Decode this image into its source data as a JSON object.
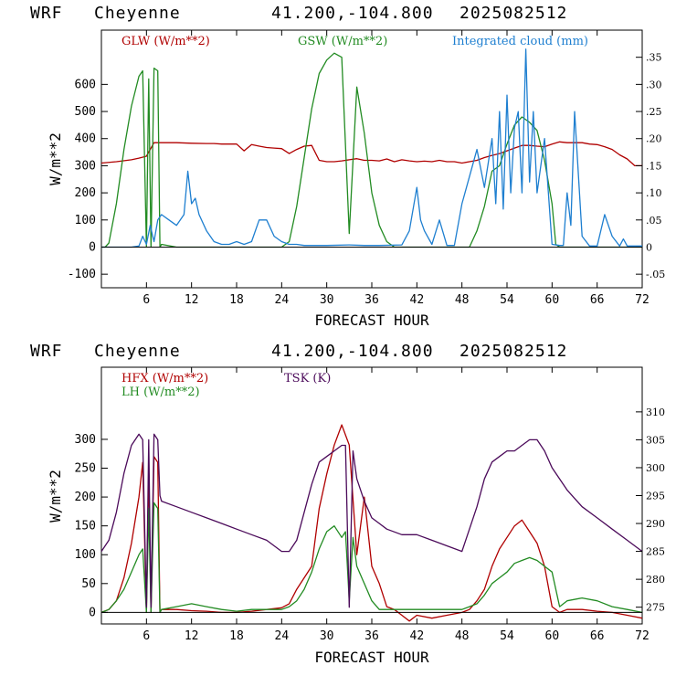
{
  "chart_data": [
    {
      "type": "line",
      "header": {
        "model": "WRF",
        "location": "Cheyenne",
        "coords": "41.200,-104.800",
        "run": "2025082512"
      },
      "xlabel": "FORECAST HOUR",
      "ylabel": "W/m**2",
      "xlim": [
        0,
        72
      ],
      "ylim": [
        -150,
        800
      ],
      "y2lim": [
        -0.075,
        0.4
      ],
      "x_ticks": [
        "6",
        "12",
        "18",
        "24",
        "30",
        "36",
        "42",
        "48",
        "54",
        "60",
        "66",
        "72"
      ],
      "y_ticks": [
        "-100",
        "0",
        "100",
        "200",
        "300",
        "400",
        "500",
        "600"
      ],
      "y2_ticks": [
        "-.05",
        "0",
        ".05",
        ".10",
        ".15",
        ".20",
        ".25",
        ".30",
        ".35"
      ],
      "series": [
        {
          "name": "GLW (W/m**2)",
          "color": "#b00000",
          "axis": "left",
          "x": [
            0,
            2,
            4,
            5,
            6,
            7,
            8,
            9,
            10,
            12,
            14,
            15,
            16,
            18,
            19,
            20,
            21,
            22,
            23,
            24,
            25,
            26,
            27,
            28,
            29,
            30,
            31,
            32,
            33,
            34,
            35,
            36,
            37,
            38,
            39,
            40,
            41,
            42,
            43,
            44,
            45,
            46,
            47,
            48,
            49,
            50,
            51,
            52,
            53,
            54,
            55,
            56,
            57,
            58,
            59,
            60,
            61,
            62,
            63,
            64,
            65,
            66,
            67,
            68,
            69,
            70,
            71,
            72
          ],
          "y": [
            310,
            315,
            322,
            328,
            335,
            385,
            385,
            385,
            385,
            383,
            382,
            382,
            380,
            380,
            355,
            378,
            372,
            367,
            365,
            363,
            345,
            360,
            372,
            375,
            320,
            315,
            315,
            318,
            322,
            326,
            320,
            320,
            318,
            325,
            315,
            322,
            318,
            315,
            317,
            315,
            320,
            315,
            315,
            310,
            315,
            320,
            330,
            338,
            345,
            355,
            365,
            375,
            375,
            372,
            370,
            380,
            388,
            385,
            385,
            385,
            380,
            378,
            370,
            360,
            340,
            325,
            300,
            300
          ]
        },
        {
          "name": "GSW (W/m**2)",
          "color": "#228b22",
          "axis": "left",
          "x": [
            0,
            0.5,
            1,
            2,
            3,
            4,
            5,
            5.5,
            6,
            6.3,
            6.6,
            7,
            7.5,
            7.8,
            8,
            10,
            12,
            14,
            16,
            18,
            20,
            22,
            24,
            25,
            26,
            27,
            28,
            29,
            30,
            31,
            32,
            33,
            34,
            35,
            36,
            37,
            38,
            39,
            40,
            41,
            42,
            43,
            44,
            45,
            46,
            47,
            48,
            49,
            50,
            51,
            52,
            53,
            54,
            55,
            56,
            57,
            58,
            59,
            60,
            60.5,
            61,
            63,
            66,
            69,
            72
          ],
          "y": [
            0,
            0,
            15,
            160,
            360,
            520,
            630,
            650,
            0,
            620,
            0,
            660,
            650,
            0,
            10,
            0,
            0,
            0,
            0,
            0,
            0,
            0,
            0,
            20,
            150,
            330,
            510,
            640,
            690,
            715,
            700,
            50,
            590,
            420,
            200,
            80,
            20,
            0,
            0,
            0,
            0,
            0,
            0,
            0,
            0,
            0,
            0,
            0,
            60,
            150,
            280,
            300,
            380,
            450,
            480,
            460,
            430,
            320,
            160,
            10,
            0,
            0,
            0,
            0,
            0
          ]
        },
        {
          "name": "Integrated cloud (mm)",
          "color": "#1e7fd0",
          "axis": "right",
          "x": [
            0,
            3,
            4,
            5,
            5.5,
            6,
            6.5,
            7,
            7.5,
            8,
            9,
            10,
            11,
            11.5,
            12,
            12.5,
            13,
            14,
            15,
            16,
            17,
            18,
            19,
            20,
            21,
            22,
            23,
            24,
            25,
            26,
            27,
            28,
            30,
            33,
            35,
            37,
            40,
            41,
            42,
            42.5,
            43,
            44,
            45,
            46,
            47,
            48,
            49,
            50,
            51,
            52,
            52.5,
            53,
            53.5,
            54,
            54.5,
            55,
            55.5,
            56,
            56.5,
            57,
            57.5,
            58,
            59,
            60,
            61,
            61.5,
            62,
            62.5,
            63,
            64,
            65,
            66,
            67,
            68,
            69,
            69.5,
            70,
            71,
            72
          ],
          "y": [
            0,
            0,
            0,
            0.002,
            0.02,
            0.005,
            0.04,
            0.01,
            0.05,
            0.06,
            0.05,
            0.04,
            0.06,
            0.14,
            0.08,
            0.09,
            0.06,
            0.03,
            0.01,
            0.005,
            0.005,
            0.01,
            0.005,
            0.01,
            0.05,
            0.05,
            0.02,
            0.01,
            0.005,
            0.005,
            0.003,
            0.003,
            0.003,
            0.004,
            0.003,
            0.003,
            0.004,
            0.03,
            0.11,
            0.05,
            0.03,
            0.005,
            0.05,
            0.003,
            0.003,
            0.08,
            0.13,
            0.18,
            0.11,
            0.2,
            0.08,
            0.25,
            0.07,
            0.28,
            0.1,
            0.22,
            0.25,
            0.1,
            0.365,
            0.12,
            0.25,
            0.1,
            0.2,
            0.005,
            0.003,
            0.003,
            0.1,
            0.04,
            0.25,
            0.02,
            0.002,
            0.002,
            0.06,
            0.02,
            0.002,
            0.015,
            0.002,
            0.002,
            0.002
          ]
        }
      ]
    },
    {
      "type": "line",
      "header": {
        "model": "WRF",
        "location": "Cheyenne",
        "coords": "41.200,-104.800",
        "run": "2025082512"
      },
      "xlabel": "FORECAST HOUR",
      "ylabel": "W/m**2",
      "xlim": [
        0,
        72
      ],
      "ylim": [
        -20,
        425
      ],
      "y2lim": [
        272,
        318
      ],
      "x_ticks": [
        "6",
        "12",
        "18",
        "24",
        "30",
        "36",
        "42",
        "48",
        "54",
        "60",
        "66",
        "72"
      ],
      "y_ticks": [
        "0",
        "50",
        "100",
        "150",
        "200",
        "250",
        "300"
      ],
      "y2_ticks": [
        "275",
        "280",
        "285",
        "290",
        "295",
        "300",
        "305",
        "310"
      ],
      "series": [
        {
          "name": "HFX (W/m**2)",
          "color": "#b00000",
          "axis": "left",
          "x": [
            0,
            1,
            2,
            3,
            4,
            5,
            5.5,
            6,
            6.3,
            6.6,
            7,
            7.5,
            7.8,
            8,
            10,
            12,
            14,
            16,
            18,
            20,
            22,
            24,
            25,
            26,
            27,
            28,
            29,
            30,
            31,
            32,
            33,
            34,
            35,
            36,
            37,
            38,
            39,
            40,
            41,
            42,
            44,
            46,
            48,
            49,
            50,
            51,
            52,
            53,
            54,
            55,
            56,
            57,
            58,
            59,
            60,
            61,
            62,
            64,
            66,
            68,
            70,
            72
          ],
          "y": [
            0,
            5,
            20,
            60,
            120,
            200,
            260,
            0,
            250,
            0,
            270,
            260,
            0,
            5,
            5,
            3,
            2,
            0,
            0,
            2,
            5,
            8,
            15,
            40,
            60,
            80,
            180,
            240,
            290,
            325,
            290,
            100,
            200,
            80,
            50,
            10,
            5,
            -5,
            -15,
            -5,
            -10,
            -5,
            0,
            5,
            20,
            40,
            80,
            110,
            130,
            150,
            160,
            140,
            120,
            80,
            10,
            0,
            5,
            5,
            2,
            0,
            -5,
            -10
          ]
        },
        {
          "name": "LH (W/m**2)",
          "color": "#228b22",
          "axis": "left",
          "x": [
            0,
            1,
            2,
            3,
            4,
            5,
            5.5,
            6,
            6.3,
            6.6,
            7,
            7.5,
            7.8,
            8,
            10,
            12,
            14,
            16,
            18,
            20,
            22,
            24,
            25,
            26,
            27,
            28,
            29,
            30,
            31,
            32,
            32.5,
            33,
            33.5,
            34,
            35,
            36,
            37,
            38,
            40,
            44,
            48,
            49,
            50,
            51,
            52,
            53,
            54,
            55,
            56,
            57,
            58,
            59,
            60,
            61,
            62,
            64,
            66,
            68,
            70,
            72
          ],
          "y": [
            0,
            5,
            20,
            40,
            70,
            100,
            110,
            0,
            180,
            0,
            190,
            180,
            0,
            5,
            10,
            15,
            10,
            5,
            2,
            5,
            5,
            5,
            10,
            20,
            40,
            70,
            110,
            140,
            150,
            130,
            140,
            20,
            130,
            80,
            50,
            20,
            5,
            5,
            5,
            5,
            5,
            10,
            15,
            30,
            50,
            60,
            70,
            85,
            90,
            95,
            90,
            80,
            70,
            10,
            20,
            25,
            20,
            10,
            5,
            0
          ]
        },
        {
          "name": "TSK (K)",
          "color": "#4b0a5a",
          "axis": "right",
          "x": [
            0,
            1,
            2,
            3,
            4,
            5,
            5.5,
            6,
            6.3,
            6.6,
            7,
            7.5,
            7.8,
            8,
            10,
            12,
            14,
            16,
            18,
            20,
            22,
            24,
            25,
            26,
            27,
            28,
            29,
            30,
            31,
            32,
            32.5,
            33,
            33.5,
            34,
            35,
            36,
            37,
            38,
            40,
            42,
            44,
            46,
            48,
            49,
            50,
            51,
            52,
            53,
            54,
            55,
            56,
            57,
            58,
            59,
            60,
            62,
            64,
            66,
            68,
            70,
            72
          ],
          "y": [
            285,
            287,
            292,
            299,
            304,
            306,
            305,
            275,
            305,
            275,
            306,
            305,
            295,
            294,
            293,
            292,
            291,
            290,
            289,
            288,
            287,
            285,
            285,
            287,
            292,
            297,
            301,
            302,
            303,
            304,
            304,
            275,
            303,
            298,
            294,
            291,
            290,
            289,
            288,
            288,
            287,
            286,
            285,
            289,
            293,
            298,
            301,
            302,
            303,
            303,
            304,
            305,
            305,
            303,
            300,
            296,
            293,
            291,
            289,
            287,
            285
          ]
        }
      ]
    }
  ]
}
